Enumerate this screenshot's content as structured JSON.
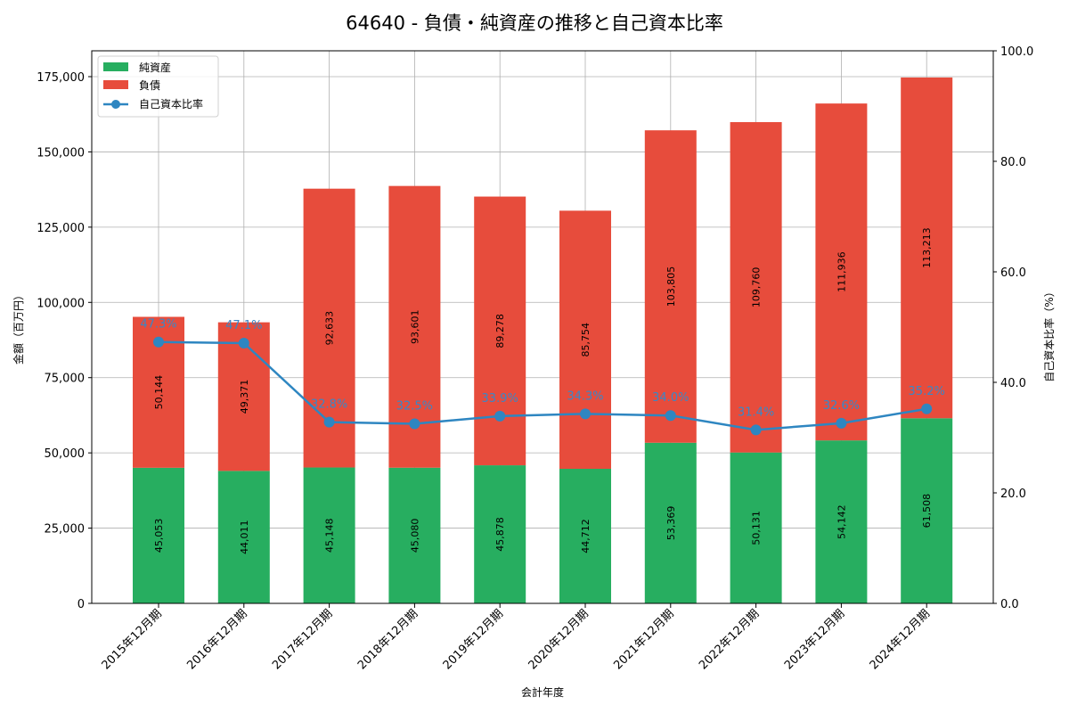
{
  "chart_data": {
    "type": "bar",
    "stacked": true,
    "title": "64640 - 負債・純資産の推移と自己資本比率",
    "xlabel": "会計年度",
    "ylabel": "金額（百万円）",
    "y2label": "自己資本比率（%）",
    "ylim": [
      0,
      183000
    ],
    "y2lim": [
      0,
      100
    ],
    "yticks": [
      "0",
      "25,000",
      "50,000",
      "75,000",
      "100,000",
      "125,000",
      "150,000",
      "175,000"
    ],
    "y2ticks": [
      "0.0",
      "20.0",
      "40.0",
      "60.0",
      "80.0",
      "100.0"
    ],
    "grid": true,
    "legend_position": "upper left",
    "categories": [
      "2015年12月期",
      "2016年12月期",
      "2017年12月期",
      "2018年12月期",
      "2019年12月期",
      "2020年12月期",
      "2021年12月期",
      "2022年12月期",
      "2023年12月期",
      "2024年12月期"
    ],
    "series": [
      {
        "name": "純資産",
        "type": "bar",
        "color": "#27ae60",
        "values": [
          45053,
          44011,
          45148,
          45080,
          45878,
          44712,
          53369,
          50131,
          54142,
          61508
        ],
        "labels": [
          "45,053",
          "44,011",
          "45,148",
          "45,080",
          "45,878",
          "44,712",
          "53,369",
          "50,131",
          "54,142",
          "61,508"
        ]
      },
      {
        "name": "負債",
        "type": "bar",
        "color": "#e74c3c",
        "values": [
          50144,
          49371,
          92633,
          93601,
          89278,
          85754,
          103805,
          109760,
          111936,
          113213
        ],
        "labels": [
          "50,144",
          "49,371",
          "92,633",
          "93,601",
          "89,278",
          "85,754",
          "103,805",
          "109,760",
          "111,936",
          "113,213"
        ]
      },
      {
        "name": "自己資本比率",
        "type": "line",
        "axis": "right",
        "color": "#2e86c1",
        "values": [
          47.3,
          47.1,
          32.8,
          32.5,
          33.9,
          34.3,
          34.0,
          31.4,
          32.6,
          35.2
        ],
        "labels": [
          "47.3%",
          "47.1%",
          "32.8%",
          "32.5%",
          "33.9%",
          "34.3%",
          "34.0%",
          "31.4%",
          "32.6%",
          "35.2%"
        ]
      }
    ]
  }
}
